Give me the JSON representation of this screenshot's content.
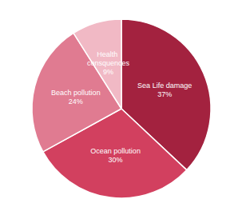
{
  "chart_data": {
    "type": "pie",
    "categories": [
      "Sea Life damage",
      "Ocean pollution",
      "Beach pollution",
      "Health consquences"
    ],
    "values": [
      37,
      30,
      24,
      9
    ],
    "value_labels": [
      "37%",
      "30%",
      "24%",
      "9%"
    ],
    "colors": [
      "#a3223f",
      "#d2405f",
      "#e07b91",
      "#f1b9c5"
    ],
    "data_labels": true
  }
}
